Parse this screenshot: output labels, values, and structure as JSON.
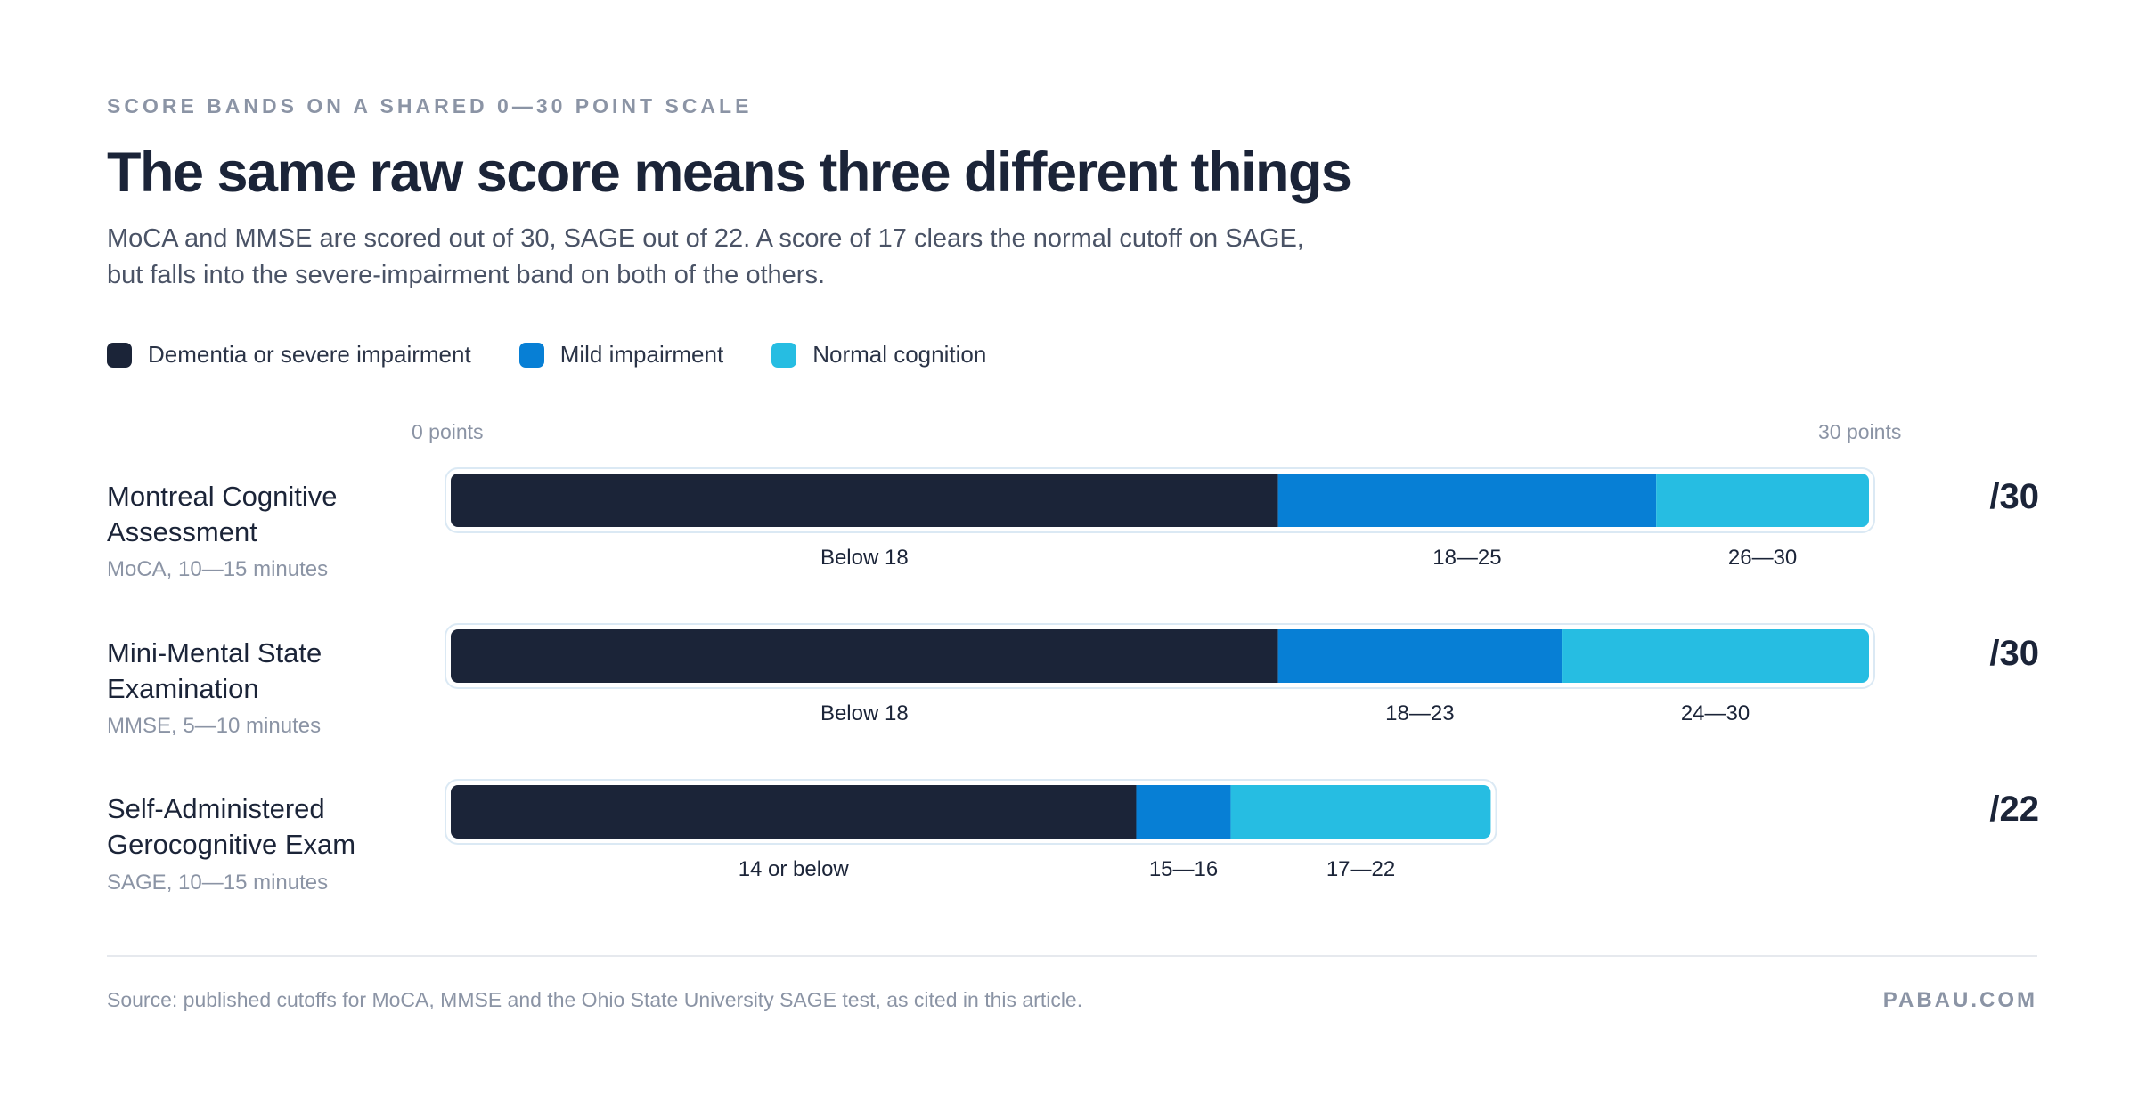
{
  "header": {
    "eyebrow": "SCORE BANDS ON A SHARED 0—30 POINT SCALE",
    "title": "The same raw score means three different things",
    "subtitle": "MoCA and MMSE are scored out of 30, SAGE out of 22. A score of 17 clears the normal cutoff on SAGE, but falls into the severe-impairment band on both of the others."
  },
  "legend": [
    {
      "label": "Dementia or severe impairment",
      "color": "#1b2438"
    },
    {
      "label": "Mild impairment",
      "color": "#077fd5"
    },
    {
      "label": "Normal cognition",
      "color": "#26bde2"
    }
  ],
  "chart_data": {
    "type": "bar",
    "orientation": "horizontal-stacked",
    "axis": {
      "min_label": "0 points",
      "max_label": "30 points",
      "xlim": [
        0,
        30
      ]
    },
    "band_colors": [
      "#1b2438",
      "#077fd5",
      "#26bde2"
    ],
    "rows": [
      {
        "name": "Montreal Cognitive Assessment",
        "sub": "MoCA, 10—15 minutes",
        "total_label": "/30",
        "max": 30,
        "bands": [
          {
            "label": "Below 18",
            "start": 0,
            "end": 17.5
          },
          {
            "label": "18—25",
            "start": 17.5,
            "end": 25.5
          },
          {
            "label": "26—30",
            "start": 25.5,
            "end": 30
          }
        ]
      },
      {
        "name": "Mini-Mental State Examination",
        "sub": "MMSE, 5—10 minutes",
        "total_label": "/30",
        "max": 30,
        "bands": [
          {
            "label": "Below 18",
            "start": 0,
            "end": 17.5
          },
          {
            "label": "18—23",
            "start": 17.5,
            "end": 23.5
          },
          {
            "label": "24—30",
            "start": 23.5,
            "end": 30
          }
        ]
      },
      {
        "name": "Self-Administered Gerocognitive Exam",
        "sub": "SAGE, 10—15 minutes",
        "total_label": "/22",
        "max": 22,
        "bands": [
          {
            "label": "14 or below",
            "start": 0,
            "end": 14.5
          },
          {
            "label": "15—16",
            "start": 14.5,
            "end": 16.5
          },
          {
            "label": "17—22",
            "start": 16.5,
            "end": 22
          }
        ]
      }
    ]
  },
  "footer": {
    "source": "Source: published cutoffs for MoCA, MMSE and the Ohio State University SAGE test, as cited in this article.",
    "brand": "PABAU.COM"
  }
}
